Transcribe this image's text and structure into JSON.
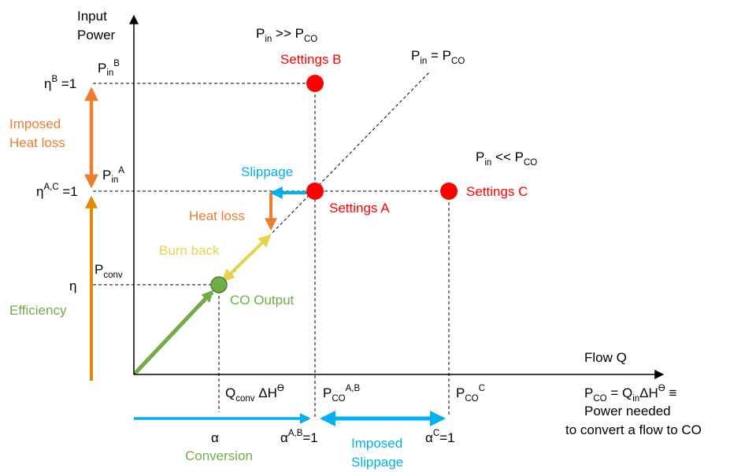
{
  "colors": {
    "black": "#000000",
    "red": "#ff0000",
    "orange": "#ed7d31",
    "blue": "#00b0f0",
    "green": "#70ad47",
    "yellow": "#e6d34d",
    "axis_orange": "#e08a00"
  },
  "y_axis": {
    "label_line1": "Input",
    "label_line2": "Power"
  },
  "x_axis": {
    "label": "Flow Q"
  },
  "regime_labels": {
    "above": {
      "base": "P",
      "sub1": "in",
      "mid": " >> P",
      "sub2": "CO"
    },
    "equal": {
      "base": "P",
      "sub1": "in",
      "mid": " = P",
      "sub2": "CO"
    },
    "below": {
      "base": "P",
      "sub1": "in",
      "mid": " << P",
      "sub2": "CO"
    }
  },
  "settings": {
    "a": "Settings A",
    "b": "Settings B",
    "c": "Settings C"
  },
  "y_ticks": {
    "eta_b": {
      "sym": "η",
      "sup": "B",
      "rest": " =1"
    },
    "eta_ac": {
      "sym": "η",
      "sup": "A,C",
      "rest": " =1"
    },
    "eta": "η",
    "pin_b": {
      "base": "P",
      "sub": "in",
      "sup": "B"
    },
    "pin_a": {
      "base": "P",
      "sub": "in",
      "sup": "A"
    },
    "pconv": {
      "base": "P",
      "sub": "conv"
    }
  },
  "x_ticks": {
    "qconv": {
      "base": "Q",
      "sub": "conv",
      "rest": " ΔH",
      "sup": "ϴ"
    },
    "pco_ab": {
      "base": "P",
      "sub": "CO",
      "sup": "A,B"
    },
    "pco_c": {
      "base": "P",
      "sub": "CO",
      "sup": "C"
    },
    "alpha": "α",
    "alpha_ab": {
      "sym": "α",
      "sup": "A,B",
      "rest": "=1"
    },
    "alpha_c": {
      "sym": "α",
      "sup": "C",
      "rest": "=1"
    }
  },
  "arrows": {
    "slippage": "Slippage",
    "heat_loss": "Heat loss",
    "burn_back": "Burn back",
    "co_output": "CO Output",
    "imposed_heat_loss_1": "Imposed",
    "imposed_heat_loss_2": "Heat loss",
    "efficiency": "Efficiency",
    "conversion": "Conversion",
    "imposed_slippage_1": "Imposed",
    "imposed_slippage_2": "Slippage"
  },
  "definition": {
    "eq_base": "P",
    "eq_sub": "CO",
    "eq_mid": " = Q",
    "eq_sub2": "in",
    "eq_rest": "ΔH",
    "eq_sup": "ϴ",
    "eq_end": " ≡",
    "line2": "Power needed",
    "line3": "to convert a flow to CO"
  }
}
